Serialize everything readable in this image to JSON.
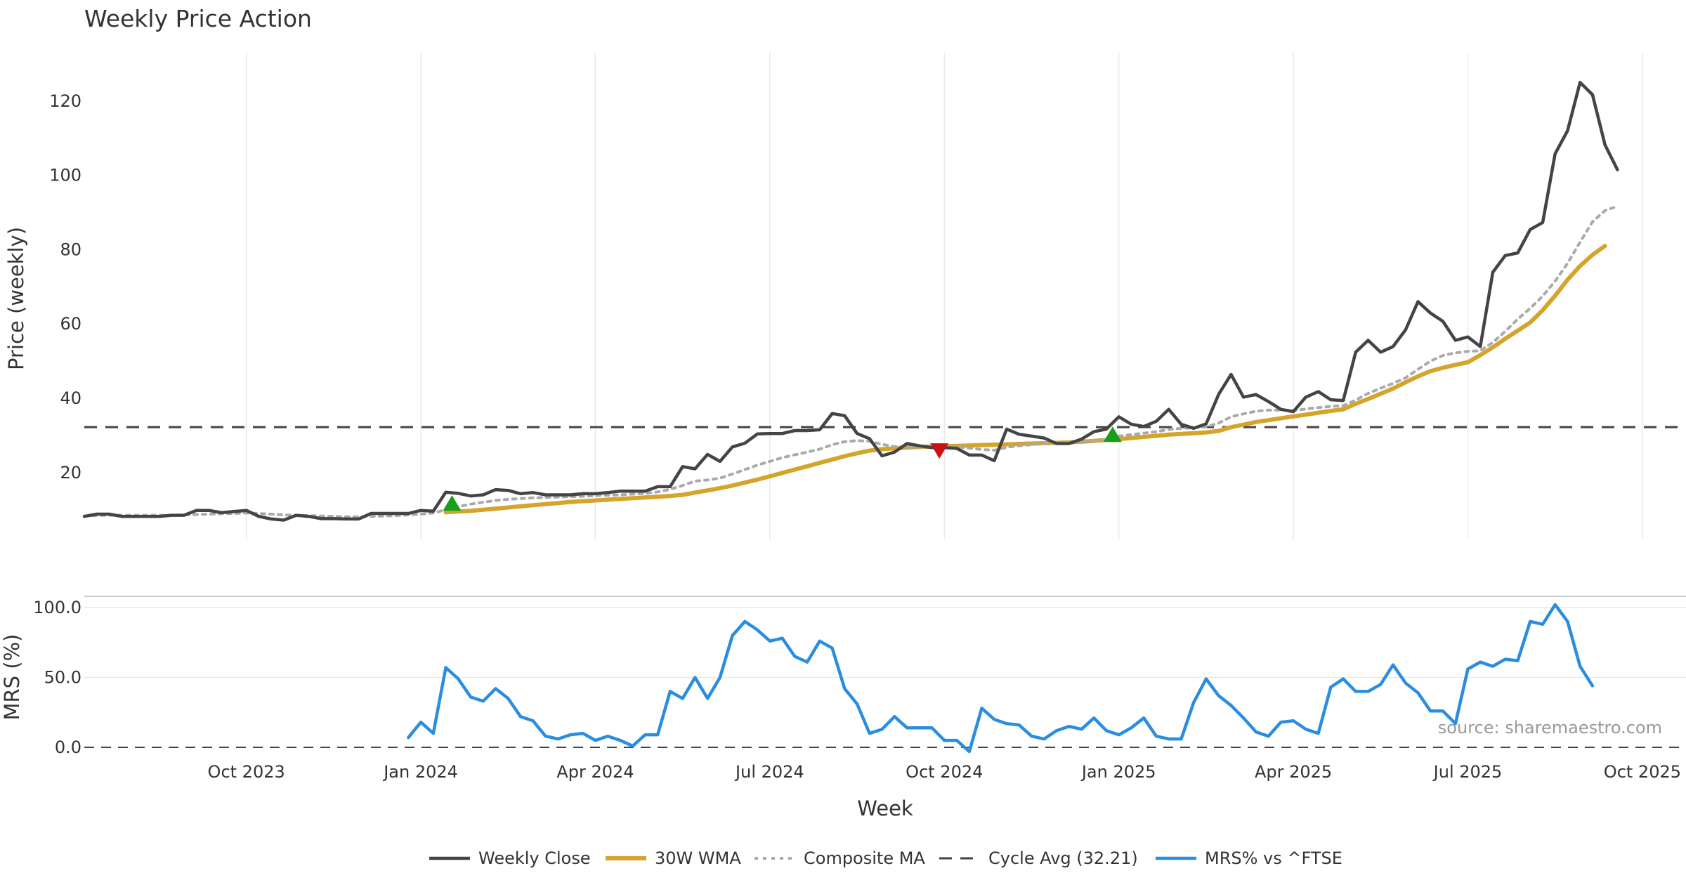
{
  "chart_data": {
    "type": "line",
    "title": "Weekly Price Action",
    "xlabel": "Week",
    "colors": {
      "close": "#444444",
      "wma": "#d4a42b",
      "composite": "#aaaaaa",
      "cycle": "#444444",
      "mrs": "#2b8de0",
      "buy": "#1a9e1a",
      "sell": "#cc1111",
      "grid": "#eaeaea"
    },
    "x_ticks": [
      {
        "label": "Oct 2023",
        "week": 13
      },
      {
        "label": "Jan 2024",
        "week": 27
      },
      {
        "label": "Apr 2024",
        "week": 41
      },
      {
        "label": "Jul 2024",
        "week": 55
      },
      {
        "label": "Oct 2024",
        "week": 69
      },
      {
        "label": "Jan 2025",
        "week": 83
      },
      {
        "label": "Apr 2025",
        "week": 97
      },
      {
        "label": "Jul 2025",
        "week": 111
      },
      {
        "label": "Oct 2025",
        "week": 125
      }
    ],
    "x_range": [
      0,
      128.5
    ],
    "price_panel": {
      "ylabel": "Price (weekly)",
      "ylim": [
        2,
        133
      ],
      "yticks": [
        20,
        40,
        60,
        80,
        100,
        120
      ]
    },
    "mrs_panel": {
      "ylabel": "MRS (%)",
      "ylim": [
        -5,
        108
      ],
      "yticks": [
        0,
        50,
        100
      ],
      "ytick_labels": [
        "0.0",
        "50.0",
        "100.0"
      ]
    },
    "series": [
      {
        "name": "Weekly Close",
        "panel": "price",
        "start_week": 0,
        "values": [
          8.2,
          8.8,
          8.8,
          8.2,
          8.2,
          8.2,
          8.2,
          8.5,
          8.5,
          9.8,
          9.8,
          9.2,
          9.5,
          9.8,
          8.2,
          7.5,
          7.2,
          8.5,
          8.2,
          7.6,
          7.6,
          7.5,
          7.5,
          9.0,
          9.0,
          9.0,
          9.0,
          9.8,
          9.6,
          14.7,
          14.4,
          13.7,
          14.0,
          15.4,
          15.2,
          14.3,
          14.6,
          14.0,
          14.0,
          14.0,
          14.3,
          14.3,
          14.6,
          15.0,
          15.0,
          15.0,
          16.2,
          16.2,
          21.6,
          21.0,
          24.9,
          23.0,
          26.9,
          27.9,
          30.4,
          30.5,
          30.5,
          31.3,
          31.3,
          31.5,
          35.9,
          35.3,
          30.5,
          29.1,
          24.5,
          25.5,
          27.8,
          27.2,
          26.7,
          26.7,
          26.5,
          24.7,
          24.7,
          23.2,
          31.7,
          30.3,
          29.8,
          29.3,
          27.8,
          27.8,
          29.0,
          31.0,
          31.7,
          35.0,
          33.0,
          32.4,
          33.8,
          37.0,
          33.0,
          31.9,
          33.1,
          41.0,
          46.4,
          40.3,
          41.0,
          39.1,
          37.0,
          36.4,
          40.3,
          41.8,
          39.6,
          39.4,
          52.4,
          55.6,
          52.4,
          53.9,
          58.4,
          66.0,
          62.9,
          60.7,
          55.6,
          56.5,
          53.9,
          73.9,
          78.4,
          79.1,
          85.4,
          87.3,
          105.8,
          112.0,
          125.0,
          121.7,
          108.2,
          101.5
        ]
      },
      {
        "name": "30W WMA",
        "panel": "price",
        "start_week": 29,
        "values": [
          9.3,
          9.5,
          9.7,
          10.0,
          10.3,
          10.6,
          10.9,
          11.2,
          11.5,
          11.8,
          12.1,
          12.3,
          12.5,
          12.7,
          12.9,
          13.1,
          13.3,
          13.5,
          13.7,
          14.0,
          14.6,
          15.2,
          15.8,
          16.5,
          17.3,
          18.1,
          19.0,
          19.9,
          20.8,
          21.7,
          22.6,
          23.5,
          24.4,
          25.2,
          25.9,
          26.3,
          26.5,
          26.7,
          26.9,
          27.0,
          27.1,
          27.2,
          27.3,
          27.4,
          27.5,
          27.6,
          27.7,
          27.8,
          27.9,
          28.0,
          28.1,
          28.3,
          28.5,
          28.8,
          29.0,
          29.3,
          29.6,
          29.9,
          30.2,
          30.4,
          30.6,
          30.8,
          31.2,
          32.2,
          32.9,
          33.6,
          34.1,
          34.6,
          35.1,
          35.6,
          36.1,
          36.6,
          37.0,
          38.5,
          39.8,
          41.2,
          42.6,
          44.3,
          45.9,
          47.3,
          48.2,
          49.0,
          49.7,
          51.6,
          53.7,
          56.0,
          58.2,
          60.4,
          63.7,
          67.6,
          71.9,
          75.6,
          78.6,
          81.0
        ]
      },
      {
        "name": "Composite MA",
        "panel": "price",
        "start_week": 0,
        "values": [
          8.3,
          8.4,
          8.5,
          8.5,
          8.5,
          8.5,
          8.5,
          8.5,
          8.6,
          8.7,
          8.8,
          8.9,
          9.0,
          9.1,
          9.0,
          8.8,
          8.6,
          8.5,
          8.4,
          8.3,
          8.2,
          8.1,
          8.1,
          8.2,
          8.3,
          8.4,
          8.6,
          8.8,
          9.1,
          10.0,
          10.8,
          11.5,
          12.0,
          12.5,
          12.8,
          13.0,
          13.2,
          13.3,
          13.4,
          13.5,
          13.6,
          13.8,
          13.9,
          14.0,
          14.2,
          14.4,
          14.8,
          15.5,
          16.5,
          17.7,
          18.0,
          18.5,
          19.6,
          20.8,
          22.0,
          23.0,
          24.0,
          24.8,
          25.5,
          26.3,
          27.5,
          28.3,
          28.6,
          28.4,
          27.6,
          27.0,
          26.8,
          26.8,
          26.9,
          27.0,
          26.9,
          26.6,
          26.2,
          26.0,
          26.8,
          27.2,
          27.5,
          27.8,
          27.9,
          28.0,
          28.2,
          28.5,
          29.0,
          29.8,
          30.2,
          30.6,
          31.0,
          31.6,
          31.9,
          32.0,
          32.3,
          33.3,
          35.0,
          35.8,
          36.5,
          36.8,
          36.8,
          36.7,
          37.1,
          37.5,
          37.8,
          38.0,
          39.5,
          41.3,
          42.7,
          44.0,
          45.5,
          47.8,
          50.0,
          51.5,
          52.2,
          52.6,
          52.8,
          55.0,
          58.0,
          61.3,
          64.2,
          67.5,
          71.5,
          76.3,
          82.0,
          87.5,
          90.5,
          91.7
        ]
      },
      {
        "name": "Cycle Avg (32.21)",
        "panel": "price",
        "value": 32.21
      },
      {
        "name": "MRS% vs ^FTSE",
        "panel": "mrs",
        "start_week": 26,
        "values": [
          7,
          18,
          10,
          57,
          49,
          36,
          33,
          42,
          35,
          22,
          19,
          8,
          6,
          9,
          10,
          5,
          8,
          5,
          1,
          9,
          9,
          40,
          35,
          50,
          35,
          50,
          80,
          90,
          84,
          76,
          78,
          65,
          61,
          76,
          71,
          42,
          31,
          10,
          13,
          22,
          14,
          14,
          14,
          5,
          5,
          -3,
          28,
          20,
          17,
          16,
          8,
          6,
          12,
          15,
          13,
          21,
          12,
          9,
          14,
          21,
          8,
          6,
          6,
          32,
          49,
          37,
          30,
          21,
          11,
          8,
          18,
          19,
          13,
          10,
          43,
          49,
          40,
          40,
          45,
          59,
          46,
          39,
          26,
          26,
          17,
          56,
          61,
          58,
          63,
          62,
          90,
          88,
          102,
          90,
          58,
          44
        ]
      }
    ],
    "signals": [
      {
        "type": "buy",
        "week": 29.5,
        "value": 11.8
      },
      {
        "type": "sell",
        "week": 68.6,
        "value": 25.8
      },
      {
        "type": "buy",
        "week": 82.5,
        "value": 30.3
      }
    ],
    "legend": {
      "position": "bottom",
      "entries": [
        {
          "label": "Weekly Close",
          "style": "solid",
          "color": "#444444"
        },
        {
          "label": "30W WMA",
          "style": "solid-thick",
          "color": "#d4a42b"
        },
        {
          "label": "Composite MA",
          "style": "dotted",
          "color": "#aaaaaa"
        },
        {
          "label": "Cycle Avg (32.21)",
          "style": "dashed",
          "color": "#444444"
        },
        {
          "label": "MRS% vs ^FTSE",
          "style": "solid-thick",
          "color": "#2b8de0"
        }
      ]
    },
    "annotation": "source: sharemaestro.com"
  }
}
